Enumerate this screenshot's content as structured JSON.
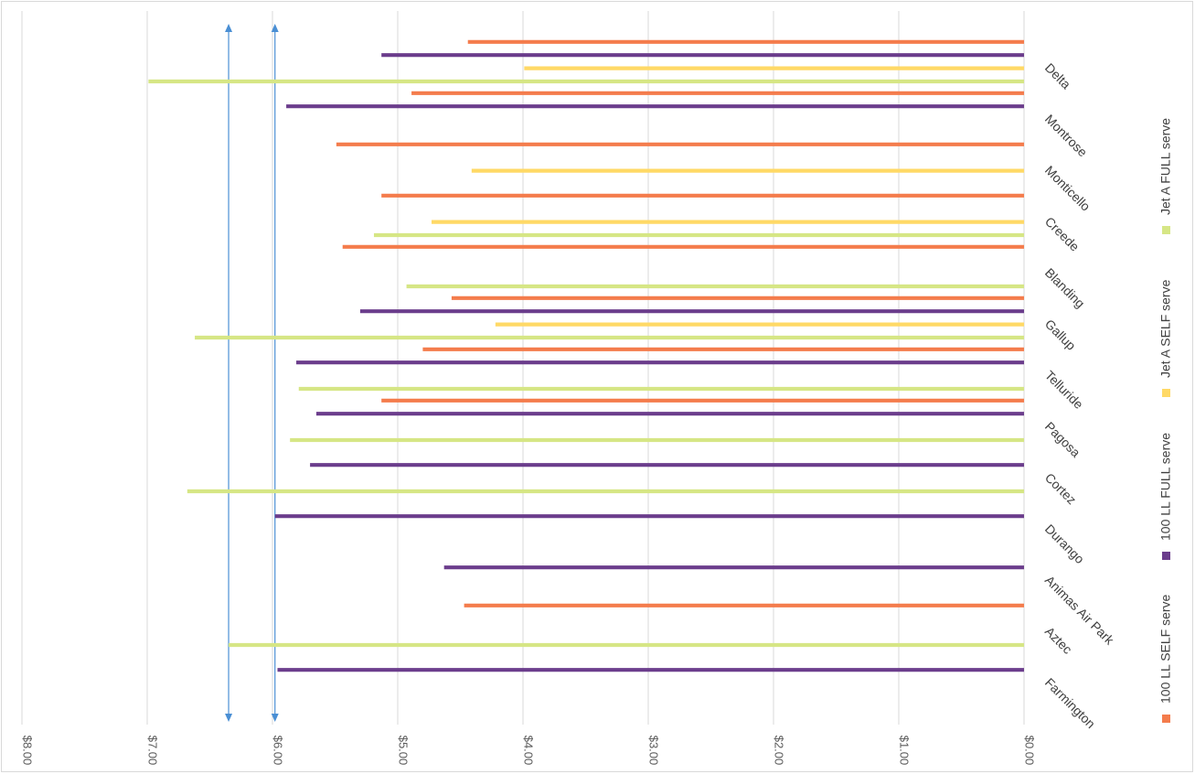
{
  "chart_data": {
    "type": "bar",
    "orientation": "horizontal",
    "title": "",
    "xlabel": "",
    "ylabel": "",
    "xlim": [
      0,
      8
    ],
    "x_ticks": [
      "$0.00",
      "$1.00",
      "$2.00",
      "$3.00",
      "$4.00",
      "$5.00",
      "$6.00",
      "$7.00",
      "$8.00"
    ],
    "grid": true,
    "legend_position": "right",
    "categories": [
      "Delta",
      "Montrose",
      "Monticello",
      "Creede",
      "Blanding",
      "Gallup",
      "Telluride",
      "Pagosa",
      "Cortez",
      "Durango",
      "Animas Air Park",
      "Aztec",
      "Farmington"
    ],
    "series": [
      {
        "name": "Jet A FULL serve",
        "color": "#d6e685",
        "values": [
          6.99,
          null,
          null,
          5.19,
          4.93,
          6.62,
          5.79,
          5.86,
          6.68,
          null,
          null,
          6.35,
          null
        ]
      },
      {
        "name": "Jet A SELF serve",
        "color": "#ffd966",
        "values": [
          3.99,
          null,
          4.41,
          4.73,
          null,
          4.22,
          null,
          null,
          null,
          null,
          null,
          null,
          null
        ]
      },
      {
        "name": "100 LL FULL serve",
        "color": "#6b3d8c",
        "values": [
          5.13,
          5.89,
          null,
          null,
          null,
          5.3,
          5.81,
          5.65,
          5.7,
          5.98,
          4.63,
          null,
          5.96
        ]
      },
      {
        "name": "100 LL SELF serve",
        "color": "#f47c4c",
        "values": [
          4.44,
          4.89,
          5.49,
          5.13,
          5.44,
          4.57,
          4.8,
          5.13,
          null,
          null,
          null,
          4.47,
          null
        ]
      }
    ],
    "annotations": [
      {
        "type": "vertical-arrow",
        "value": 6.35,
        "color": "#4a8fd4"
      },
      {
        "type": "vertical-arrow",
        "value": 5.98,
        "color": "#4a8fd4"
      }
    ]
  }
}
